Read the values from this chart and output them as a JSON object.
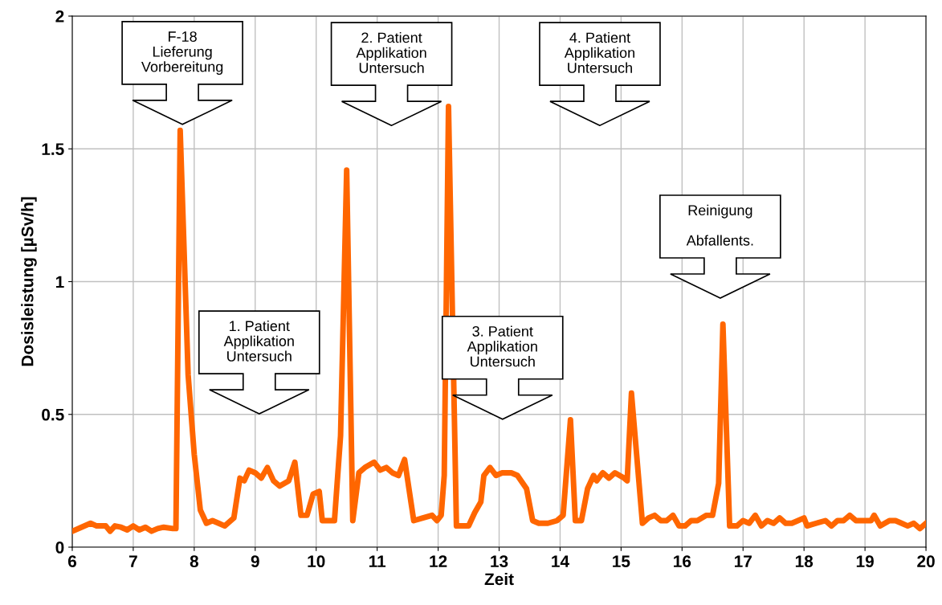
{
  "chart_data": {
    "type": "line",
    "xlabel": "Zeit",
    "ylabel": "Dosisleistung [µSv/h]",
    "xlim": [
      6,
      20
    ],
    "xticks": [
      6,
      7,
      8,
      9,
      10,
      11,
      12,
      13,
      14,
      15,
      16,
      17,
      18,
      19,
      20
    ],
    "ylim": [
      0,
      2
    ],
    "yticks": [
      0,
      0.5,
      1,
      1.5,
      2
    ],
    "grid": true,
    "legend": false,
    "marker": "none",
    "line_style": "solid",
    "series": [
      {
        "color": "#ff6600",
        "x": [
          6.0,
          6.15,
          6.3,
          6.4,
          6.55,
          6.62,
          6.7,
          6.8,
          6.9,
          7.0,
          7.1,
          7.2,
          7.3,
          7.4,
          7.5,
          7.65,
          7.7,
          7.77,
          7.9,
          8.0,
          8.1,
          8.2,
          8.3,
          8.4,
          8.5,
          8.65,
          8.75,
          8.82,
          8.9,
          9.0,
          9.1,
          9.2,
          9.3,
          9.4,
          9.55,
          9.65,
          9.75,
          9.85,
          9.95,
          10.05,
          10.1,
          10.2,
          10.3,
          10.4,
          10.5,
          10.6,
          10.7,
          10.8,
          10.95,
          11.05,
          11.15,
          11.25,
          11.35,
          11.45,
          11.6,
          11.75,
          11.9,
          11.98,
          12.05,
          12.1,
          12.17,
          12.3,
          12.4,
          12.5,
          12.6,
          12.7,
          12.75,
          12.85,
          12.95,
          13.05,
          13.2,
          13.3,
          13.45,
          13.55,
          13.65,
          13.8,
          13.95,
          14.05,
          14.17,
          14.25,
          14.35,
          14.45,
          14.55,
          14.6,
          14.7,
          14.8,
          14.9,
          15.05,
          15.1,
          15.17,
          15.35,
          15.45,
          15.55,
          15.65,
          15.75,
          15.85,
          15.95,
          16.05,
          16.15,
          16.25,
          16.4,
          16.5,
          16.6,
          16.67,
          16.78,
          16.9,
          17.0,
          17.1,
          17.2,
          17.3,
          17.4,
          17.5,
          17.6,
          17.7,
          17.8,
          17.9,
          18.0,
          18.05,
          18.2,
          18.35,
          18.45,
          18.55,
          18.65,
          18.75,
          18.85,
          18.95,
          19.1,
          19.15,
          19.25,
          19.4,
          19.5,
          19.6,
          19.7,
          19.8,
          19.9,
          20.0
        ],
        "values": [
          0.06,
          0.075,
          0.09,
          0.08,
          0.08,
          0.06,
          0.08,
          0.075,
          0.065,
          0.08,
          0.065,
          0.075,
          0.06,
          0.07,
          0.075,
          0.07,
          0.07,
          1.57,
          0.65,
          0.35,
          0.14,
          0.09,
          0.1,
          0.09,
          0.08,
          0.11,
          0.26,
          0.25,
          0.29,
          0.28,
          0.26,
          0.3,
          0.25,
          0.23,
          0.25,
          0.32,
          0.12,
          0.12,
          0.2,
          0.21,
          0.1,
          0.1,
          0.1,
          0.42,
          1.42,
          0.1,
          0.28,
          0.3,
          0.32,
          0.29,
          0.3,
          0.28,
          0.27,
          0.33,
          0.1,
          0.11,
          0.12,
          0.1,
          0.12,
          0.27,
          1.66,
          0.08,
          0.08,
          0.08,
          0.13,
          0.17,
          0.27,
          0.3,
          0.27,
          0.28,
          0.28,
          0.27,
          0.22,
          0.1,
          0.09,
          0.09,
          0.1,
          0.12,
          0.48,
          0.1,
          0.1,
          0.22,
          0.27,
          0.25,
          0.28,
          0.26,
          0.28,
          0.26,
          0.25,
          0.58,
          0.09,
          0.11,
          0.12,
          0.1,
          0.1,
          0.12,
          0.08,
          0.08,
          0.1,
          0.1,
          0.12,
          0.12,
          0.24,
          0.84,
          0.08,
          0.08,
          0.1,
          0.09,
          0.12,
          0.08,
          0.1,
          0.09,
          0.11,
          0.09,
          0.09,
          0.1,
          0.11,
          0.08,
          0.09,
          0.1,
          0.08,
          0.1,
          0.1,
          0.12,
          0.1,
          0.1,
          0.1,
          0.12,
          0.08,
          0.1,
          0.1,
          0.09,
          0.08,
          0.09,
          0.07,
          0.09
        ]
      }
    ],
    "annotations": [
      "F-18\nLieferung\nVorbereitung",
      "1. Patient\nApplikation\nUntersuch",
      "2. Patient\nApplikation\nUntersuch",
      "3. Patient\nApplikation\nUntersuch",
      "4. Patient\nApplikation\nUntersuch",
      "Reinigung\n\nAbfallents."
    ]
  }
}
